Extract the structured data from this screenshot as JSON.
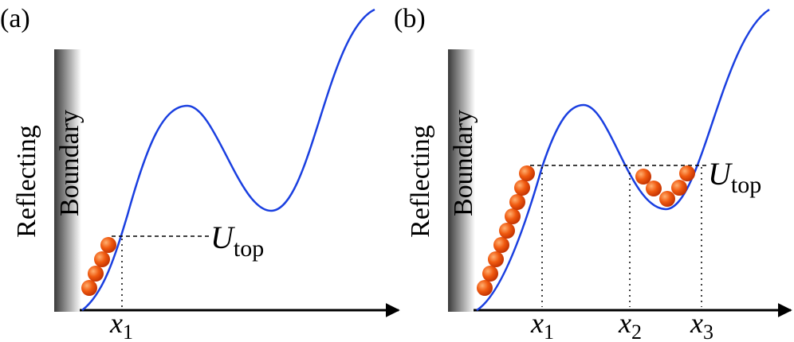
{
  "panels": [
    {
      "label": "(a)",
      "wall_labels": [
        "Reflecting",
        "Boundary"
      ],
      "level_label": {
        "main": "U",
        "sub": "top"
      },
      "x_labels": [
        {
          "main": "x",
          "sub": "1"
        }
      ]
    },
    {
      "label": "(b)",
      "wall_labels": [
        "Reflecting",
        "Boundary"
      ],
      "level_label": {
        "main": "U",
        "sub": "top"
      },
      "x_labels": [
        {
          "main": "x",
          "sub": "1"
        },
        {
          "main": "x",
          "sub": "2"
        },
        {
          "main": "x",
          "sub": "3"
        }
      ]
    }
  ]
}
